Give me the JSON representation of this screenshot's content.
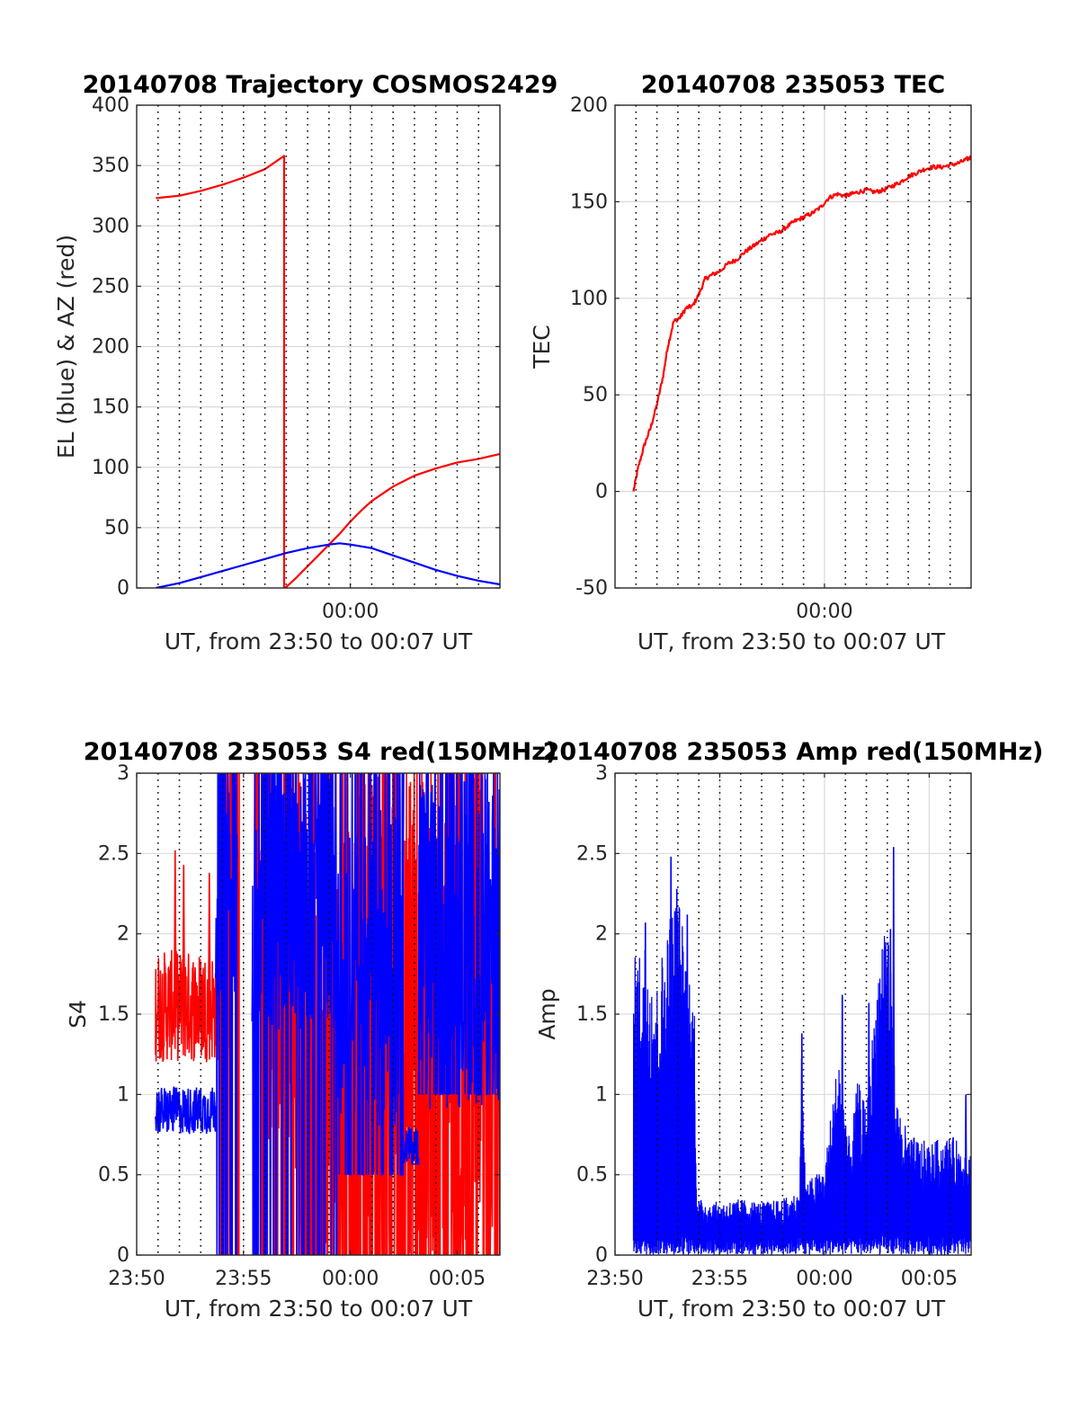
{
  "chart_data": [
    {
      "id": "trajectory",
      "type": "line",
      "title": "20140708 Trajectory COSMOS2429",
      "xlabel": "UT, from 23:50 to 00:07 UT",
      "ylabel": "EL (blue) & AZ (red)",
      "xlim": [
        -10,
        7
      ],
      "ylim": [
        0,
        400
      ],
      "yticks": [
        0,
        50,
        100,
        150,
        200,
        250,
        300,
        350,
        400
      ],
      "xticks": [
        {
          "value": 0,
          "label": "00:00"
        }
      ],
      "dotted_minutes": [
        -9,
        -8,
        -7,
        -6,
        -5,
        -4,
        -3,
        -2,
        -1,
        0,
        1,
        2,
        3,
        4,
        5,
        6
      ],
      "series": [
        {
          "color": "#ff0000",
          "x": [
            -9.1,
            -8,
            -7,
            -6,
            -5,
            -4,
            -3.1,
            -3.1,
            -3.05,
            -2.5,
            -2,
            -1.5,
            -1,
            -0.5,
            0,
            0.5,
            1,
            2,
            3,
            4,
            5,
            6,
            7
          ],
          "y": [
            323,
            325,
            329,
            334,
            340,
            347,
            358,
            0,
            0,
            9,
            18,
            27,
            36,
            45,
            55,
            64,
            72,
            84,
            93,
            99,
            104,
            107,
            111
          ]
        },
        {
          "color": "#0000ff",
          "x": [
            -9.1,
            -8,
            -7,
            -6,
            -5,
            -4,
            -3,
            -2,
            -1,
            -0.5,
            0,
            1,
            2,
            3,
            4,
            5,
            6,
            7
          ],
          "y": [
            0,
            4,
            9,
            14,
            19,
            24,
            29,
            33,
            36,
            37,
            36,
            33,
            27,
            21,
            15,
            10,
            6,
            3
          ]
        }
      ]
    },
    {
      "id": "tec",
      "type": "line",
      "title": "20140708 235053 TEC",
      "xlabel": "UT, from 23:50 to 00:07 UT",
      "ylabel": "TEC",
      "xlim": [
        -10,
        7
      ],
      "ylim": [
        -50,
        200
      ],
      "yticks": [
        -50,
        0,
        50,
        100,
        150,
        200
      ],
      "xticks": [
        {
          "value": 0,
          "label": "00:00"
        }
      ],
      "dotted_minutes": [
        -9,
        -8,
        -7,
        -6,
        -5,
        -4,
        -3,
        -2,
        -1,
        1,
        2,
        3,
        4,
        5,
        6
      ],
      "series": [
        {
          "color": "#ff0000",
          "x": [
            -9.12,
            -8.9,
            -8.6,
            -8.3,
            -8,
            -7.7,
            -7.5,
            -7.2,
            -6.9,
            -6.6,
            -6.3,
            -6,
            -5.7,
            -5.4,
            -5,
            -4.6,
            -4.2,
            -3.8,
            -3.4,
            -3,
            -2.6,
            -2.2,
            -1.8,
            -1.4,
            -1,
            -0.6,
            -0.2,
            0.2,
            0.6,
            1,
            1.3,
            1.6,
            2,
            2.4,
            2.8,
            3.2,
            3.6,
            4,
            4.4,
            4.8,
            5.2,
            5.6,
            6,
            6.4,
            6.8,
            7
          ],
          "y": [
            0,
            12,
            24,
            33,
            45,
            60,
            74,
            88,
            90,
            95,
            96,
            102,
            110,
            112,
            114,
            118,
            120,
            124,
            127,
            130,
            133,
            134,
            137,
            140,
            142,
            144,
            147,
            152,
            154,
            153,
            154,
            155,
            156,
            155,
            156,
            158,
            160,
            163,
            165,
            167,
            168,
            168,
            169,
            170,
            172,
            173
          ]
        }
      ]
    },
    {
      "id": "s4",
      "type": "line",
      "title": "20140708 235053 S4 red(150MHz)",
      "xlabel": "UT, from 23:50 to 00:07 UT",
      "ylabel": "S4",
      "xlim": [
        -10,
        7
      ],
      "ylim": [
        0,
        3
      ],
      "yticks": [
        0,
        0.5,
        1,
        1.5,
        2,
        2.5,
        3
      ],
      "xticks": [
        {
          "value": -10,
          "label": "23:50"
        },
        {
          "value": -5,
          "label": "23:55"
        },
        {
          "value": 0,
          "label": "00:00"
        },
        {
          "value": 5,
          "label": "00:05"
        }
      ],
      "dotted_minutes": [
        -9,
        -8,
        -7,
        -6,
        -5,
        -4,
        -3,
        -2,
        -1,
        1,
        2,
        3,
        4,
        6
      ],
      "red_segments": [
        {
          "x0": -9.12,
          "x1": -6.2,
          "base": 1.55,
          "spread": 0.35,
          "spikes": [
            {
              "x": -8.2,
              "y": 2.52
            },
            {
              "x": -7.8,
              "y": 2.43
            },
            {
              "x": -6.6,
              "y": 2.38
            }
          ]
        },
        {
          "x0": -6.1,
          "x1": -5.2,
          "base": 2.4,
          "spread": 1.2,
          "floor": 0
        },
        {
          "x0": -4.5,
          "x1": -3.0,
          "base": 2.1,
          "spread": 1.4,
          "floor": 0
        },
        {
          "x0": -3.0,
          "x1": 7.0,
          "base": 1.3,
          "spread": 1.8,
          "floor": 0
        }
      ],
      "blue_segments": [
        {
          "x0": -9.12,
          "x1": -6.3,
          "base": 0.9,
          "spread": 0.15
        },
        {
          "x0": -6.3,
          "x1": -5.3,
          "base": 2.5,
          "spread": 0.9,
          "floor": 0
        },
        {
          "x0": -4.6,
          "x1": -0.6,
          "base": 2.3,
          "spread": 0.9,
          "floor": 0
        },
        {
          "x0": -0.6,
          "x1": 2.5,
          "base": 1.8,
          "spread": 1.0,
          "floor": 0.5
        },
        {
          "x0": 2.5,
          "x1": 3.2,
          "base": 0.68,
          "spread": 0.12
        },
        {
          "x0": 3.2,
          "x1": 7.0,
          "base": 2.0,
          "spread": 1.1,
          "floor": 1.0
        }
      ]
    },
    {
      "id": "amp",
      "type": "line",
      "title": "20140708 235053 Amp red(150MHz)",
      "xlabel": "UT, from 23:50 to 00:07 UT",
      "ylabel": "Amp",
      "xlim": [
        -10,
        7
      ],
      "ylim": [
        0,
        3
      ],
      "yticks": [
        0,
        0.5,
        1,
        1.5,
        2,
        2.5,
        3
      ],
      "xticks": [
        {
          "value": -10,
          "label": "23:50"
        },
        {
          "value": -5,
          "label": "23:55"
        },
        {
          "value": 0,
          "label": "00:00"
        },
        {
          "value": 5,
          "label": "00:05"
        }
      ],
      "dotted_minutes": [
        -9,
        -8,
        -7,
        -6,
        -5,
        -4,
        -3,
        -2,
        -1,
        1,
        2,
        3,
        4,
        6
      ],
      "envelope": [
        {
          "x": -9.12,
          "y": 1.85
        },
        {
          "x": -8.5,
          "y": 2.0
        },
        {
          "x": -8.0,
          "y": 1.7
        },
        {
          "x": -7.5,
          "y": 2.1
        },
        {
          "x": -7.0,
          "y": 2.3
        },
        {
          "x": -6.5,
          "y": 1.8
        },
        {
          "x": -6.2,
          "y": 1.6
        },
        {
          "x": -6.1,
          "y": 0.35
        },
        {
          "x": -5.0,
          "y": 0.33
        },
        {
          "x": -4.0,
          "y": 0.35
        },
        {
          "x": -3.0,
          "y": 0.33
        },
        {
          "x": -2.0,
          "y": 0.35
        },
        {
          "x": -1.2,
          "y": 0.4
        },
        {
          "x": -1.1,
          "y": 1.3
        },
        {
          "x": -0.9,
          "y": 0.45
        },
        {
          "x": 0.0,
          "y": 0.55
        },
        {
          "x": 0.7,
          "y": 1.3
        },
        {
          "x": 1.2,
          "y": 0.7
        },
        {
          "x": 1.6,
          "y": 1.1
        },
        {
          "x": 2.0,
          "y": 0.9
        },
        {
          "x": 2.6,
          "y": 1.9
        },
        {
          "x": 3.0,
          "y": 2.3
        },
        {
          "x": 3.4,
          "y": 1.0
        },
        {
          "x": 4.0,
          "y": 0.75
        },
        {
          "x": 5.0,
          "y": 0.7
        },
        {
          "x": 6.0,
          "y": 0.75
        },
        {
          "x": 7.0,
          "y": 0.65
        }
      ],
      "spikes": [
        {
          "x": -7.33,
          "y": 2.48
        },
        {
          "x": -7.05,
          "y": 2.28
        },
        {
          "x": -6.55,
          "y": 2.12
        },
        {
          "x": -8.55,
          "y": 2.07
        },
        {
          "x": -1.08,
          "y": 1.38
        },
        {
          "x": 0.85,
          "y": 1.62
        },
        {
          "x": 2.12,
          "y": 1.57
        },
        {
          "x": 3.15,
          "y": 2.03
        },
        {
          "x": 3.3,
          "y": 2.54
        },
        {
          "x": 6.75,
          "y": 1.0
        }
      ]
    }
  ]
}
